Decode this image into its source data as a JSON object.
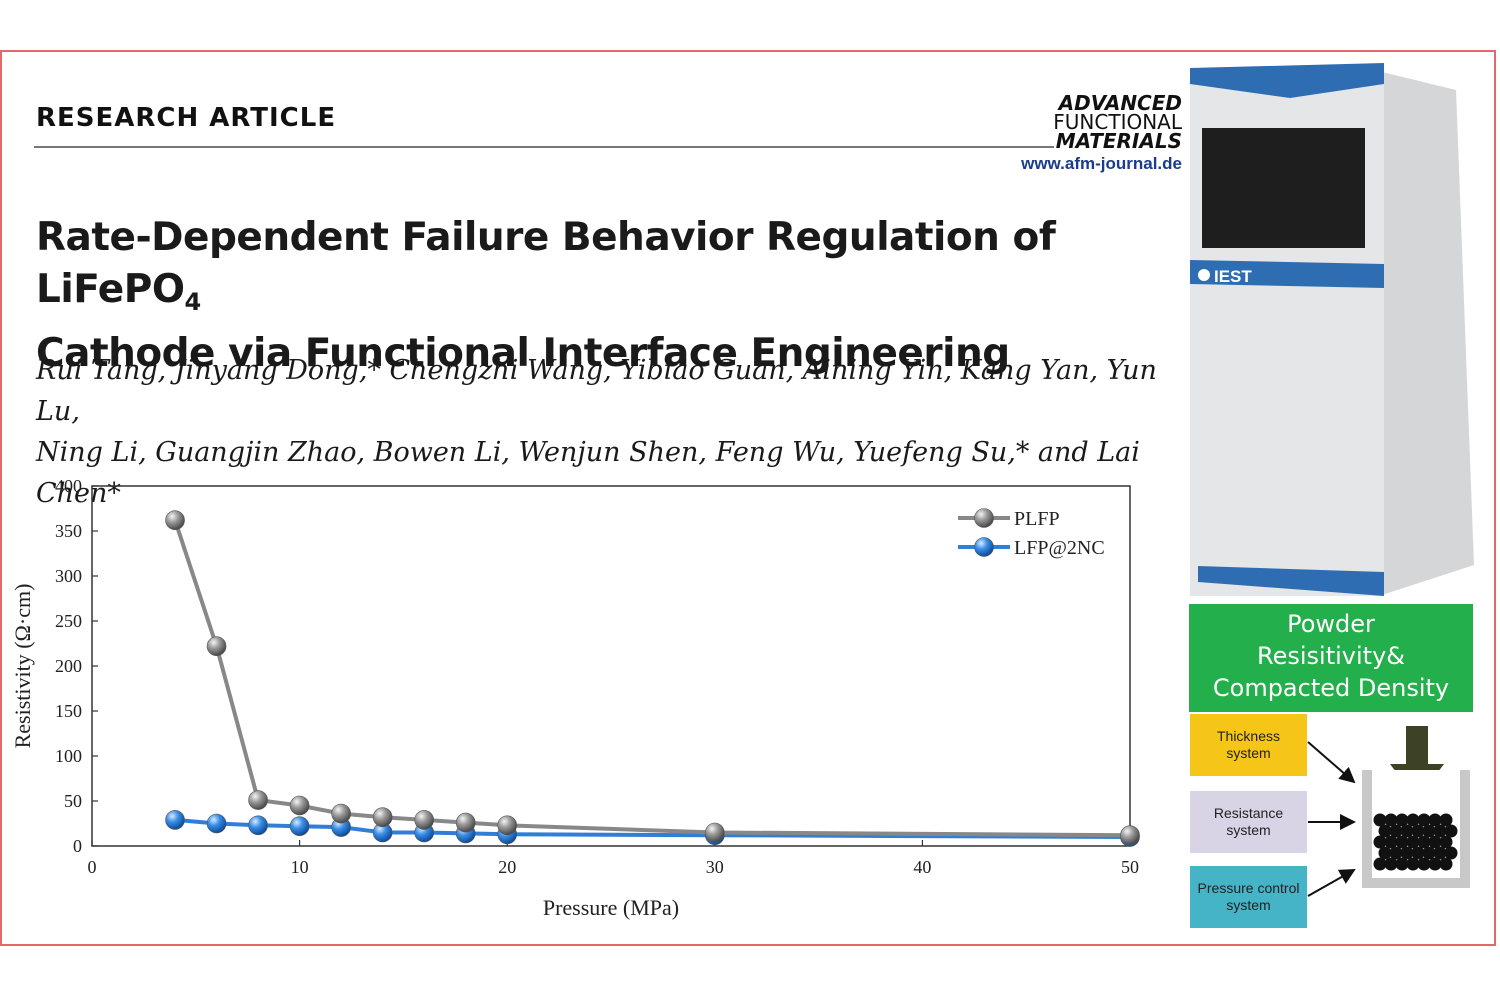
{
  "header": {
    "kicker": "RESEARCH ARTICLE",
    "journal_logo": [
      "ADVANCED",
      "FUNCTIONAL",
      "MATERIALS"
    ],
    "journal_url": "www.afm-journal.de"
  },
  "article": {
    "title_line1": "Rate-Dependent Failure Behavior Regulation of LiFePO",
    "title_sub": "4",
    "title_line2": "Cathode via Functional Interface Engineering",
    "authors_line1": "Rui Tang, Jinyang Dong,* Chengzhi Wang, Yibiao Guan, Aining Yin, Kang Yan, Yun Lu,",
    "authors_line2": "Ning Li, Guangjin Zhao, Bowen Li, Wenjun Shen, Feng Wu, Yuefeng Su,* and Lai Chen*"
  },
  "chart_data": {
    "type": "line",
    "title": "",
    "xlabel": "Pressure (MPa)",
    "ylabel": "Resistivity (Ω·cm)",
    "xlim": [
      0,
      50
    ],
    "ylim": [
      0,
      400
    ],
    "xticks": [
      0,
      10,
      20,
      30,
      40,
      50
    ],
    "yticks": [
      0,
      50,
      100,
      150,
      200,
      250,
      300,
      350,
      400
    ],
    "grid": false,
    "legend_position": "top-right",
    "series": [
      {
        "name": "PLFP",
        "color": "#888888",
        "x": [
          4,
          6,
          8,
          10,
          12,
          14,
          16,
          18,
          20,
          30,
          50
        ],
        "y": [
          362,
          222,
          51,
          45,
          36,
          32,
          29,
          26,
          23,
          15,
          12
        ]
      },
      {
        "name": "LFP@2NC",
        "color": "#2f7fd8",
        "x": [
          4,
          6,
          8,
          10,
          12,
          14,
          16,
          18,
          20,
          30,
          50
        ],
        "y": [
          29,
          25,
          23,
          22,
          21,
          15,
          15,
          14,
          13,
          12,
          10
        ]
      }
    ]
  },
  "instrument": {
    "brand": "IEST",
    "colors": {
      "body": "#e2e4e6",
      "accent": "#2f6db3",
      "screen": "#1e1e1e"
    }
  },
  "system_diagram": {
    "heading_lines": [
      "Powder",
      "Resisitivity&",
      "Compacted Density"
    ],
    "boxes": [
      {
        "lines": [
          "Thickness",
          "system"
        ],
        "color": "#f5c518"
      },
      {
        "lines": [
          "Resistance",
          "system"
        ],
        "color": "#d9d3e6"
      },
      {
        "lines": [
          "Pressure control",
          "system"
        ],
        "color": "#44b4c6"
      }
    ]
  }
}
